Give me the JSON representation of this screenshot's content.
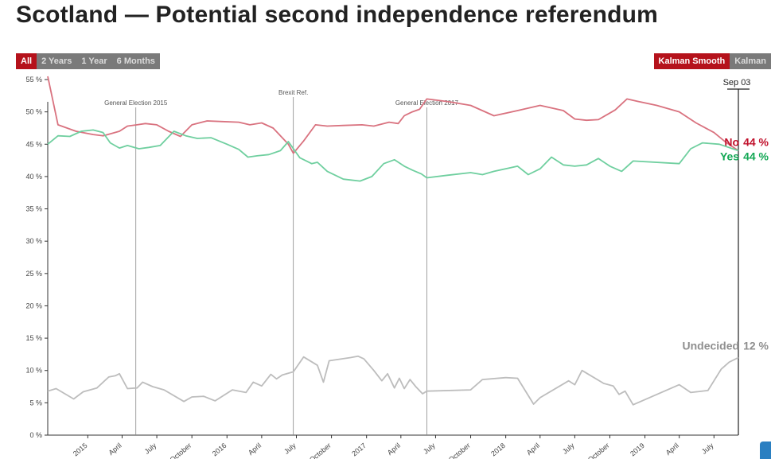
{
  "page": {
    "title": "Scotland — Potential second independence referendum"
  },
  "controls": {
    "ranges": [
      {
        "label": "All",
        "active": true
      },
      {
        "label": "2 Years",
        "active": false
      },
      {
        "label": "1 Year",
        "active": false
      },
      {
        "label": "6 Months",
        "active": false
      }
    ],
    "modes": [
      {
        "label": "Kalman Smooth",
        "active": true
      },
      {
        "label": "Kalman",
        "active": false
      }
    ]
  },
  "colors": {
    "no": "#d9727f",
    "no_label": "#c0102b",
    "yes": "#6fcf9f",
    "yes_label": "#14a855",
    "undecided": "#bdbdbd",
    "undecided_label": "#8f8f8f",
    "accent": "#b5121b"
  },
  "chart_data": {
    "type": "line",
    "title": "",
    "xlabel": "",
    "ylabel": "",
    "ylim": [
      0,
      55
    ],
    "yticks": [
      0,
      5,
      10,
      15,
      20,
      25,
      30,
      35,
      40,
      45,
      50,
      55
    ],
    "ytick_labels": [
      "0 %",
      "5 %",
      "10 %",
      "15 %",
      "20 %",
      "25 %",
      "30 %",
      "35 %",
      "40 %",
      "45 %",
      "50 %",
      "55 %"
    ],
    "xlim": [
      "2014-09-18",
      "2019-09-03"
    ],
    "xticks": [
      {
        "date": "2015-01-01",
        "label": "2015"
      },
      {
        "date": "2015-04-01",
        "label": "April"
      },
      {
        "date": "2015-07-01",
        "label": "July"
      },
      {
        "date": "2015-10-01",
        "label": "October"
      },
      {
        "date": "2016-01-01",
        "label": "2016"
      },
      {
        "date": "2016-04-01",
        "label": "April"
      },
      {
        "date": "2016-07-01",
        "label": "July"
      },
      {
        "date": "2016-10-01",
        "label": "October"
      },
      {
        "date": "2017-01-01",
        "label": "2017"
      },
      {
        "date": "2017-04-01",
        "label": "April"
      },
      {
        "date": "2017-07-01",
        "label": "July"
      },
      {
        "date": "2017-10-01",
        "label": "October"
      },
      {
        "date": "2018-01-01",
        "label": "2018"
      },
      {
        "date": "2018-04-01",
        "label": "April"
      },
      {
        "date": "2018-07-01",
        "label": "July"
      },
      {
        "date": "2018-10-01",
        "label": "October"
      },
      {
        "date": "2019-01-01",
        "label": "2019"
      },
      {
        "date": "2019-04-01",
        "label": "April"
      },
      {
        "date": "2019-07-01",
        "label": "July"
      }
    ],
    "events": [
      {
        "date": "2015-05-07",
        "label": "General Election 2015"
      },
      {
        "date": "2016-06-23",
        "label": "Brexit Ref."
      },
      {
        "date": "2017-06-08",
        "label": "General Election 2017"
      }
    ],
    "current_date": {
      "date": "2019-09-03",
      "label": "Sep 03"
    },
    "series": [
      {
        "name": "No",
        "end_label": "No",
        "end_value": "44 %",
        "color": "#d9727f",
        "points": [
          [
            "2014-09-18",
            55.5
          ],
          [
            "2014-10-15",
            48.0
          ],
          [
            "2014-12-01",
            47.0
          ],
          [
            "2015-01-15",
            46.5
          ],
          [
            "2015-02-10",
            46.3
          ],
          [
            "2015-03-01",
            46.6
          ],
          [
            "2015-03-25",
            47.0
          ],
          [
            "2015-04-15",
            47.8
          ],
          [
            "2015-05-10",
            48.0
          ],
          [
            "2015-06-01",
            48.2
          ],
          [
            "2015-07-01",
            48.0
          ],
          [
            "2015-08-01",
            47.0
          ],
          [
            "2015-09-01",
            46.2
          ],
          [
            "2015-10-01",
            48.0
          ],
          [
            "2015-11-10",
            48.6
          ],
          [
            "2015-12-20",
            48.5
          ],
          [
            "2016-02-01",
            48.4
          ],
          [
            "2016-03-01",
            48.0
          ],
          [
            "2016-04-01",
            48.3
          ],
          [
            "2016-05-01",
            47.5
          ],
          [
            "2016-06-10",
            45.0
          ],
          [
            "2016-06-23",
            43.6
          ],
          [
            "2016-07-20",
            45.5
          ],
          [
            "2016-08-20",
            48.0
          ],
          [
            "2016-09-20",
            47.8
          ],
          [
            "2016-11-01",
            47.9
          ],
          [
            "2016-12-20",
            48.0
          ],
          [
            "2017-01-20",
            47.8
          ],
          [
            "2017-03-01",
            48.4
          ],
          [
            "2017-03-25",
            48.2
          ],
          [
            "2017-04-10",
            49.4
          ],
          [
            "2017-05-01",
            50.0
          ],
          [
            "2017-05-20",
            50.4
          ],
          [
            "2017-06-08",
            52.0
          ],
          [
            "2017-08-01",
            51.6
          ],
          [
            "2017-10-01",
            51.0
          ],
          [
            "2017-12-01",
            49.4
          ],
          [
            "2018-02-01",
            50.2
          ],
          [
            "2018-04-01",
            51.0
          ],
          [
            "2018-06-01",
            50.2
          ],
          [
            "2018-07-01",
            48.9
          ],
          [
            "2018-08-01",
            48.7
          ],
          [
            "2018-09-01",
            48.8
          ],
          [
            "2018-10-15",
            50.3
          ],
          [
            "2018-11-15",
            52.0
          ],
          [
            "2018-12-15",
            51.6
          ],
          [
            "2019-02-01",
            51.0
          ],
          [
            "2019-04-01",
            50.0
          ],
          [
            "2019-05-15",
            48.3
          ],
          [
            "2019-07-01",
            46.8
          ],
          [
            "2019-08-01",
            45.3
          ],
          [
            "2019-09-03",
            44.0
          ]
        ]
      },
      {
        "name": "Yes",
        "end_label": "Yes",
        "end_value": "44 %",
        "color": "#6fcf9f",
        "points": [
          [
            "2014-09-18",
            45.0
          ],
          [
            "2014-10-15",
            46.3
          ],
          [
            "2014-11-15",
            46.2
          ],
          [
            "2014-12-15",
            47.0
          ],
          [
            "2015-01-15",
            47.2
          ],
          [
            "2015-02-10",
            46.8
          ],
          [
            "2015-03-01",
            45.2
          ],
          [
            "2015-03-25",
            44.4
          ],
          [
            "2015-04-15",
            44.8
          ],
          [
            "2015-05-15",
            44.3
          ],
          [
            "2015-06-10",
            44.5
          ],
          [
            "2015-07-10",
            44.8
          ],
          [
            "2015-08-15",
            47.0
          ],
          [
            "2015-09-15",
            46.3
          ],
          [
            "2015-10-15",
            45.9
          ],
          [
            "2015-11-20",
            46.0
          ],
          [
            "2016-01-01",
            45.0
          ],
          [
            "2016-02-01",
            44.2
          ],
          [
            "2016-02-25",
            43.0
          ],
          [
            "2016-03-20",
            43.2
          ],
          [
            "2016-04-20",
            43.4
          ],
          [
            "2016-05-20",
            44.0
          ],
          [
            "2016-06-10",
            45.4
          ],
          [
            "2016-07-10",
            42.9
          ],
          [
            "2016-08-10",
            42.0
          ],
          [
            "2016-08-25",
            42.2
          ],
          [
            "2016-09-20",
            40.8
          ],
          [
            "2016-11-01",
            39.6
          ],
          [
            "2016-12-15",
            39.3
          ],
          [
            "2017-01-15",
            40.0
          ],
          [
            "2017-02-15",
            42.0
          ],
          [
            "2017-03-15",
            42.6
          ],
          [
            "2017-04-10",
            41.6
          ],
          [
            "2017-05-01",
            41.0
          ],
          [
            "2017-05-25",
            40.4
          ],
          [
            "2017-06-08",
            39.8
          ],
          [
            "2017-08-01",
            40.2
          ],
          [
            "2017-10-01",
            40.6
          ],
          [
            "2017-11-01",
            40.3
          ],
          [
            "2017-12-01",
            40.8
          ],
          [
            "2018-02-01",
            41.6
          ],
          [
            "2018-03-01",
            40.3
          ],
          [
            "2018-04-01",
            41.2
          ],
          [
            "2018-05-01",
            43.0
          ],
          [
            "2018-06-01",
            41.8
          ],
          [
            "2018-07-01",
            41.6
          ],
          [
            "2018-08-01",
            41.8
          ],
          [
            "2018-09-01",
            42.8
          ],
          [
            "2018-10-01",
            41.6
          ],
          [
            "2018-11-01",
            40.8
          ],
          [
            "2018-12-01",
            42.4
          ],
          [
            "2019-04-01",
            42.0
          ],
          [
            "2019-05-01",
            44.3
          ],
          [
            "2019-06-01",
            45.2
          ],
          [
            "2019-07-15",
            45.0
          ],
          [
            "2019-09-03",
            44.0
          ]
        ]
      },
      {
        "name": "Undecided",
        "end_label": "Undecided",
        "end_value": "12 %",
        "color": "#bdbdbd",
        "points": [
          [
            "2014-09-18",
            6.8
          ],
          [
            "2014-10-10",
            7.2
          ],
          [
            "2014-11-25",
            5.6
          ],
          [
            "2014-12-20",
            6.7
          ],
          [
            "2015-01-25",
            7.3
          ],
          [
            "2015-02-25",
            9.0
          ],
          [
            "2015-03-15",
            9.2
          ],
          [
            "2015-03-25",
            9.5
          ],
          [
            "2015-04-15",
            7.2
          ],
          [
            "2015-05-10",
            7.3
          ],
          [
            "2015-05-25",
            8.2
          ],
          [
            "2015-06-20",
            7.5
          ],
          [
            "2015-07-20",
            7.0
          ],
          [
            "2015-09-10",
            5.2
          ],
          [
            "2015-10-01",
            5.9
          ],
          [
            "2015-11-01",
            6.0
          ],
          [
            "2015-12-01",
            5.3
          ],
          [
            "2016-01-15",
            7.0
          ],
          [
            "2016-02-20",
            6.6
          ],
          [
            "2016-03-10",
            8.2
          ],
          [
            "2016-04-01",
            7.6
          ],
          [
            "2016-04-25",
            9.4
          ],
          [
            "2016-05-10",
            8.7
          ],
          [
            "2016-05-25",
            9.3
          ],
          [
            "2016-06-23",
            9.8
          ],
          [
            "2016-07-20",
            12.1
          ],
          [
            "2016-08-25",
            10.8
          ],
          [
            "2016-09-10",
            8.2
          ],
          [
            "2016-09-25",
            11.5
          ],
          [
            "2016-11-20",
            12.0
          ],
          [
            "2016-12-10",
            12.2
          ],
          [
            "2016-12-25",
            11.8
          ],
          [
            "2017-01-20",
            10.0
          ],
          [
            "2017-02-10",
            8.4
          ],
          [
            "2017-02-25",
            9.5
          ],
          [
            "2017-03-15",
            7.3
          ],
          [
            "2017-03-28",
            8.8
          ],
          [
            "2017-04-10",
            7.2
          ],
          [
            "2017-04-25",
            8.6
          ],
          [
            "2017-05-10",
            7.5
          ],
          [
            "2017-05-28",
            6.4
          ],
          [
            "2017-06-08",
            6.8
          ],
          [
            "2017-10-01",
            7.0
          ],
          [
            "2017-11-01",
            8.6
          ],
          [
            "2018-01-01",
            8.9
          ],
          [
            "2018-02-01",
            8.8
          ],
          [
            "2018-03-15",
            4.8
          ],
          [
            "2018-04-01",
            5.8
          ],
          [
            "2018-06-15",
            8.4
          ],
          [
            "2018-07-01",
            7.8
          ],
          [
            "2018-07-20",
            10.0
          ],
          [
            "2018-09-15",
            8.0
          ],
          [
            "2018-10-10",
            7.6
          ],
          [
            "2018-10-25",
            6.3
          ],
          [
            "2018-11-10",
            6.8
          ],
          [
            "2018-12-01",
            4.7
          ],
          [
            "2019-04-01",
            7.8
          ],
          [
            "2019-05-01",
            6.6
          ],
          [
            "2019-06-15",
            6.9
          ],
          [
            "2019-07-20",
            10.2
          ],
          [
            "2019-08-10",
            11.3
          ],
          [
            "2019-09-03",
            12.0
          ]
        ]
      }
    ]
  }
}
